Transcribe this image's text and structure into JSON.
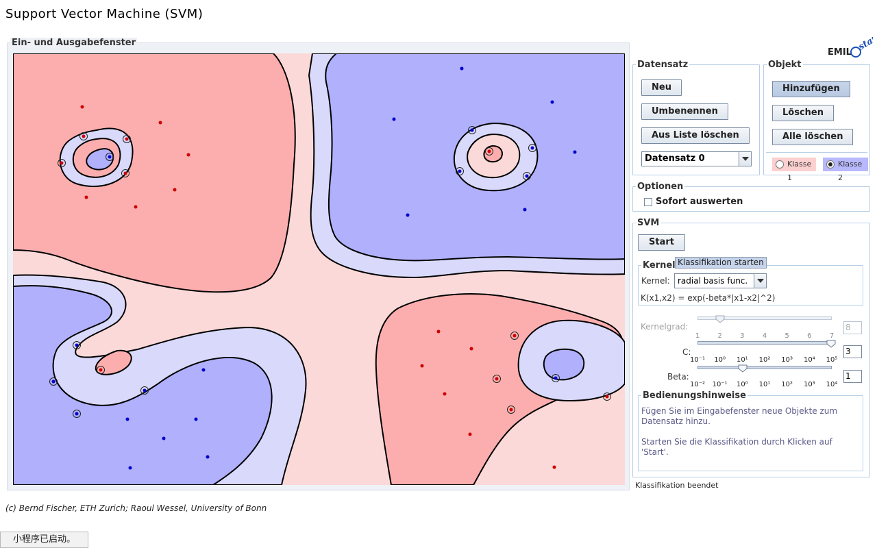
{
  "page": {
    "title": "Support Vector Machine (SVM)"
  },
  "io_panel": {
    "legend": "Ein- und Ausgabefenster"
  },
  "logo": {
    "text": "EMIL",
    "suffix": "stat"
  },
  "dataset": {
    "legend": "Datensatz",
    "new_label": "Neu",
    "rename_label": "Umbenennen",
    "remove_label": "Aus Liste löschen",
    "selected": "Datensatz 0"
  },
  "object": {
    "legend": "Objekt",
    "add_label": "Hinzufügen",
    "delete_label": "Löschen",
    "delete_all_label": "Alle löschen",
    "class1_label": "Klasse 1",
    "class2_label": "Klasse 2",
    "selected_class": "Klasse 2"
  },
  "options": {
    "legend": "Optionen",
    "instant_label": "Sofort auswerten",
    "instant_checked": false
  },
  "svm": {
    "legend": "SVM",
    "start_label": "Start",
    "tooltip": "Klassifikation starten",
    "kernel_legend": "Kernel",
    "kernel_label": "Kernel:",
    "kernel_value": "radial basis func.",
    "kernel_formula": "K(x1,x2) = exp(-beta*|x1-x2|^2)",
    "kernelgrad_label": "Kernelgrad:",
    "kernelgrad_value": "8",
    "kernelgrad_ticks": [
      "1",
      "2",
      "3",
      "4",
      "5",
      "6",
      "7"
    ],
    "c_label": "C:",
    "c_value": "3",
    "c_ticks": [
      "10⁻¹",
      "10⁰",
      "10¹",
      "10²",
      "10³",
      "10⁴",
      "10⁵"
    ],
    "beta_label": "Beta:",
    "beta_value": "1",
    "beta_ticks": [
      "10⁻²",
      "10⁻¹",
      "10⁰",
      "10¹",
      "10²",
      "10³",
      "10⁴"
    ]
  },
  "help": {
    "legend": "Bedienungshinweise",
    "text1": "Fügen Sie im Eingabefenster neue Objekte zum Datensatz hinzu.",
    "text2": "Starten Sie die Klassifikation durch Klicken auf 'Start'."
  },
  "status": {
    "text": "Klassifikation beendet"
  },
  "footer": {
    "credit": "(c) Bernd Fischer, ETH Zurich; Raoul Wessel, University of Bonn"
  },
  "applet_status": {
    "text": "小程序已启动。"
  },
  "colors": {
    "class1": "#cc0000",
    "class2": "#0000cc",
    "region_red_strong": "#fcaeae",
    "region_red_light": "#fcd9d9",
    "region_blue_strong": "#b0b0fc",
    "region_blue_light": "#d9d9fc"
  },
  "plot_points": {
    "class1": [
      [
        119,
        156
      ],
      [
        233,
        179
      ],
      [
        274,
        226
      ],
      [
        254,
        277
      ],
      [
        197,
        302
      ],
      [
        125,
        288
      ],
      [
        121,
        199
      ],
      [
        184,
        203
      ],
      [
        89,
        238
      ],
      [
        182,
        253
      ],
      [
        713,
        221
      ],
      [
        639,
        484
      ],
      [
        687,
        509
      ],
      [
        615,
        534
      ],
      [
        648,
        575
      ],
      [
        685,
        634
      ],
      [
        808,
        682
      ],
      [
        750,
        490
      ],
      [
        724,
        553
      ],
      [
        745,
        598
      ],
      [
        885,
        579
      ],
      [
        146,
        540
      ]
    ],
    "class2": [
      [
        673,
        100
      ],
      [
        805,
        149
      ],
      [
        838,
        222
      ],
      [
        574,
        174
      ],
      [
        594,
        314
      ],
      [
        765,
        306
      ],
      [
        688,
        190
      ],
      [
        776,
        216
      ],
      [
        670,
        250
      ],
      [
        768,
        257
      ],
      [
        159,
        229
      ],
      [
        111,
        504
      ],
      [
        77,
        557
      ],
      [
        111,
        604
      ],
      [
        210,
        570
      ],
      [
        296,
        540
      ],
      [
        185,
        612
      ],
      [
        285,
        612
      ],
      [
        238,
        640
      ],
      [
        302,
        667
      ],
      [
        189,
        683
      ],
      [
        810,
        552
      ]
    ],
    "support_vectors": [
      [
        121,
        199
      ],
      [
        184,
        203
      ],
      [
        89,
        238
      ],
      [
        182,
        253
      ],
      [
        159,
        229
      ],
      [
        688,
        190
      ],
      [
        776,
        216
      ],
      [
        670,
        250
      ],
      [
        768,
        257
      ],
      [
        713,
        221
      ],
      [
        111,
        504
      ],
      [
        77,
        557
      ],
      [
        111,
        604
      ],
      [
        210,
        570
      ],
      [
        146,
        540
      ],
      [
        750,
        490
      ],
      [
        724,
        553
      ],
      [
        745,
        598
      ],
      [
        885,
        579
      ],
      [
        810,
        552
      ]
    ]
  }
}
